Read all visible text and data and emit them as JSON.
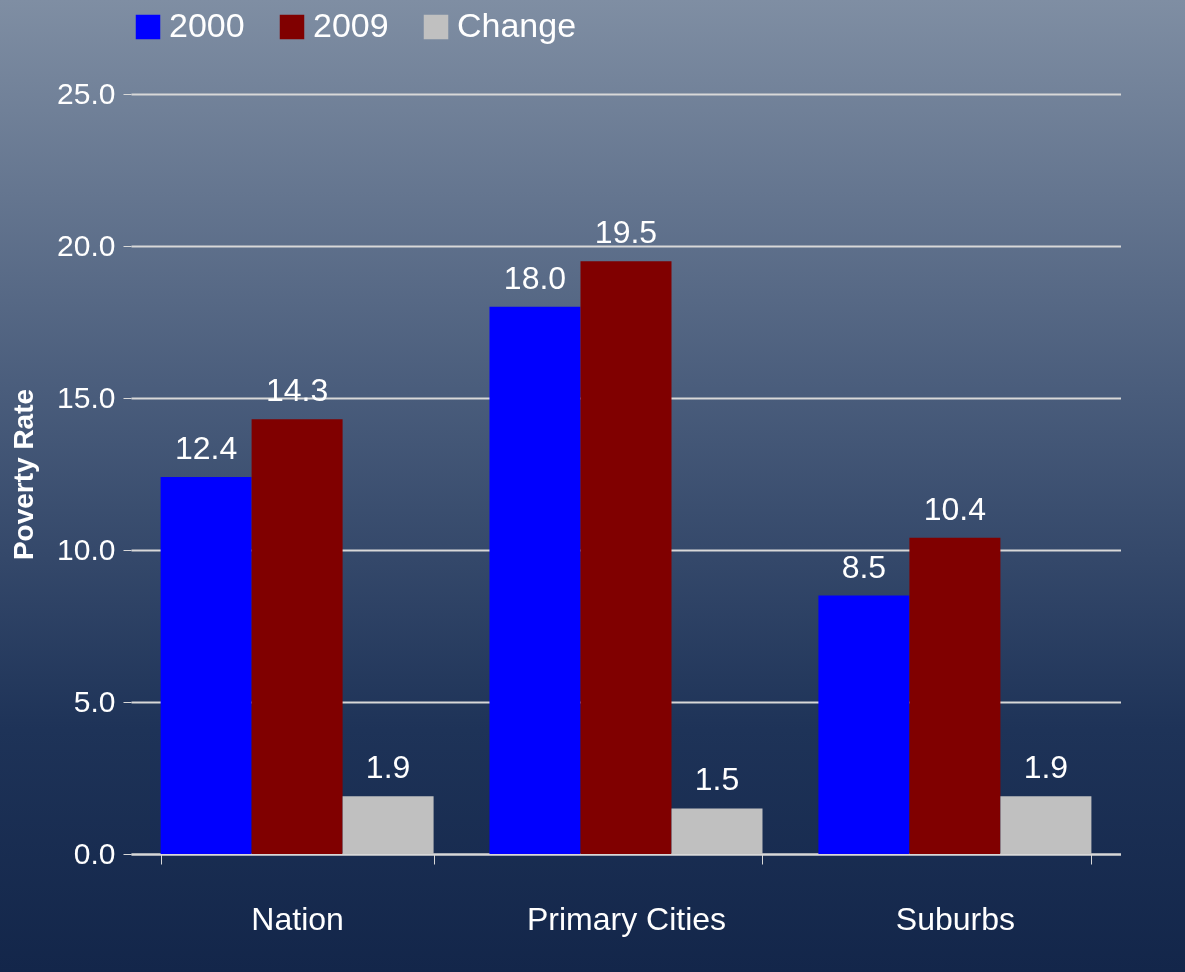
{
  "chart_data": {
    "type": "bar",
    "ylabel": "Poverty Rate",
    "categories": [
      "Nation",
      "Primary Cities",
      "Suburbs"
    ],
    "series": [
      {
        "name": "2000",
        "color": "#0000ff",
        "values": [
          12.4,
          18.0,
          8.5
        ],
        "value_labels": [
          "12.4",
          "18.0",
          "8.5"
        ]
      },
      {
        "name": "2009",
        "color": "#800000",
        "values": [
          14.3,
          19.5,
          10.4
        ],
        "value_labels": [
          "14.3",
          "19.5",
          "10.4"
        ]
      },
      {
        "name": "Change",
        "color": "#c0c0c0",
        "values": [
          1.9,
          1.5,
          1.9
        ],
        "value_labels": [
          "1.9",
          "1.5",
          "1.9"
        ]
      }
    ],
    "ylim": [
      0,
      25
    ],
    "yticks": [
      {
        "value": 0,
        "label": "0.0"
      },
      {
        "value": 5,
        "label": "5.0"
      },
      {
        "value": 10,
        "label": "10.0"
      },
      {
        "value": 15,
        "label": "15.0"
      },
      {
        "value": 20,
        "label": "20.0"
      },
      {
        "value": 25,
        "label": "25.0"
      }
    ],
    "grid": "y",
    "legend": "top"
  }
}
